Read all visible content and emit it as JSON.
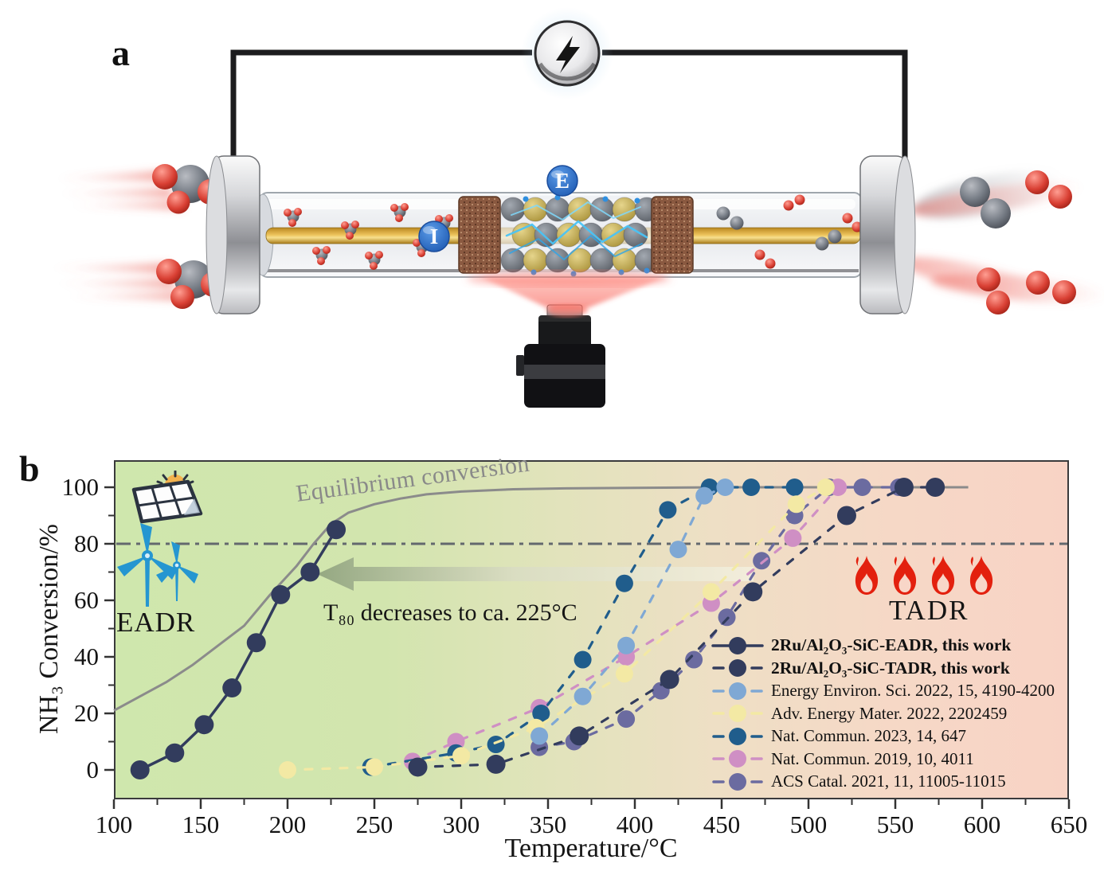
{
  "figure": {
    "panel_a_label": "a",
    "panel_b_label": "b"
  },
  "panel_a": {
    "electrode_label": "E",
    "inner_electrode_label": "I",
    "icons": [
      "power-source-icon",
      "lightning-bolt-icon",
      "ir-camera-icon"
    ]
  },
  "chart_icons": [
    "solar-panel-icon",
    "wind-turbine-icon",
    "flame-icon"
  ],
  "chart_data": {
    "type": "line",
    "title": "",
    "xlabel": "Temperature/°C",
    "ylabel": "NH₃ Conversion/%",
    "xlim": [
      100,
      650
    ],
    "ylim": [
      0,
      100
    ],
    "x_ticks": [
      100,
      150,
      200,
      250,
      300,
      350,
      400,
      450,
      500,
      550,
      600,
      650
    ],
    "y_ticks": [
      0,
      20,
      40,
      60,
      80,
      100
    ],
    "grid": false,
    "legend_position": "lower right",
    "background_gradient": [
      "#cfe7ad",
      "#e2e3bc",
      "#f8d3c5"
    ],
    "reference_line": {
      "y": 80,
      "style": "dash-dot",
      "color": "#63686e"
    },
    "equilibrium_curve": {
      "label": "Equilibrium conversion",
      "color": "#8b8b8b",
      "points": [
        [
          100,
          21
        ],
        [
          115,
          26
        ],
        [
          130,
          31
        ],
        [
          145,
          37
        ],
        [
          160,
          44
        ],
        [
          175,
          51
        ],
        [
          190,
          62
        ],
        [
          205,
          72
        ],
        [
          215,
          80
        ],
        [
          225,
          87
        ],
        [
          235,
          91
        ],
        [
          250,
          94
        ],
        [
          265,
          96
        ],
        [
          280,
          97.5
        ],
        [
          300,
          98.5
        ],
        [
          330,
          99.3
        ],
        [
          360,
          99.6
        ],
        [
          400,
          99.8
        ],
        [
          450,
          100
        ],
        [
          500,
          100
        ],
        [
          550,
          100
        ],
        [
          592,
          100
        ]
      ]
    },
    "annotations": {
      "t80_arrow": "T₈₀ decreases to ca. 225°C",
      "arrow_direction": "left",
      "eadr": "EADR",
      "tadr": "TADR"
    },
    "series": [
      {
        "name": "2Ru/Al₂O₃-SiC-EADR, this work",
        "color": "#323c5d",
        "line": "solid",
        "bold": true,
        "points": [
          [
            115,
            0
          ],
          [
            135,
            6
          ],
          [
            152,
            16
          ],
          [
            168,
            29
          ],
          [
            182,
            45
          ],
          [
            196,
            62
          ],
          [
            213,
            70
          ],
          [
            228,
            85
          ]
        ]
      },
      {
        "name": "2Ru/Al₂O₃-SiC-TADR, this work",
        "color": "#323c5d",
        "line": "dashed",
        "bold": true,
        "points": [
          [
            275,
            1
          ],
          [
            320,
            2
          ],
          [
            368,
            12
          ],
          [
            420,
            32
          ],
          [
            468,
            63
          ],
          [
            522,
            90
          ],
          [
            555,
            100
          ],
          [
            573,
            100
          ]
        ]
      },
      {
        "name": "Energy Environ. Sci. 2022, 15, 4190-4200",
        "color": "#7fa8d4",
        "line": "dashed",
        "bold": false,
        "points": [
          [
            345,
            12
          ],
          [
            370,
            26
          ],
          [
            395,
            44
          ],
          [
            425,
            78
          ],
          [
            440,
            97
          ],
          [
            452,
            100
          ]
        ]
      },
      {
        "name": "Adv. Energy Mater. 2022, 2202459",
        "color": "#f3e9a4",
        "line": "dashed",
        "bold": false,
        "points": [
          [
            200,
            0
          ],
          [
            250,
            1
          ],
          [
            300,
            5
          ],
          [
            343,
            15
          ],
          [
            394,
            34
          ],
          [
            444,
            63
          ],
          [
            493,
            94
          ],
          [
            510,
            100
          ]
        ]
      },
      {
        "name": "Nat. Commun. 2023, 14, 647",
        "color": "#205d8c",
        "line": "dashed",
        "bold": false,
        "points": [
          [
            248,
            1
          ],
          [
            297,
            6
          ],
          [
            320,
            9
          ],
          [
            346,
            20
          ],
          [
            370,
            39
          ],
          [
            394,
            66
          ],
          [
            419,
            92
          ],
          [
            443,
            100
          ],
          [
            467,
            100
          ],
          [
            492,
            100
          ]
        ]
      },
      {
        "name": "Nat. Commun. 2019, 10, 4011",
        "color": "#cf8fc4",
        "line": "dashed",
        "bold": false,
        "points": [
          [
            272,
            3
          ],
          [
            297,
            10
          ],
          [
            345,
            22
          ],
          [
            395,
            40
          ],
          [
            444,
            59
          ],
          [
            491,
            82
          ],
          [
            517,
            100
          ]
        ]
      },
      {
        "name": "ACS Catal. 2021, 11, 11005-11015",
        "color": "#6b6ba0",
        "line": "dashed",
        "bold": false,
        "points": [
          [
            345,
            8
          ],
          [
            365,
            10
          ],
          [
            395,
            18
          ],
          [
            415,
            28
          ],
          [
            434,
            39
          ],
          [
            453,
            54
          ],
          [
            473,
            74
          ],
          [
            492,
            90
          ],
          [
            512,
            100
          ],
          [
            531,
            100
          ],
          [
            552,
            100
          ]
        ]
      }
    ]
  }
}
